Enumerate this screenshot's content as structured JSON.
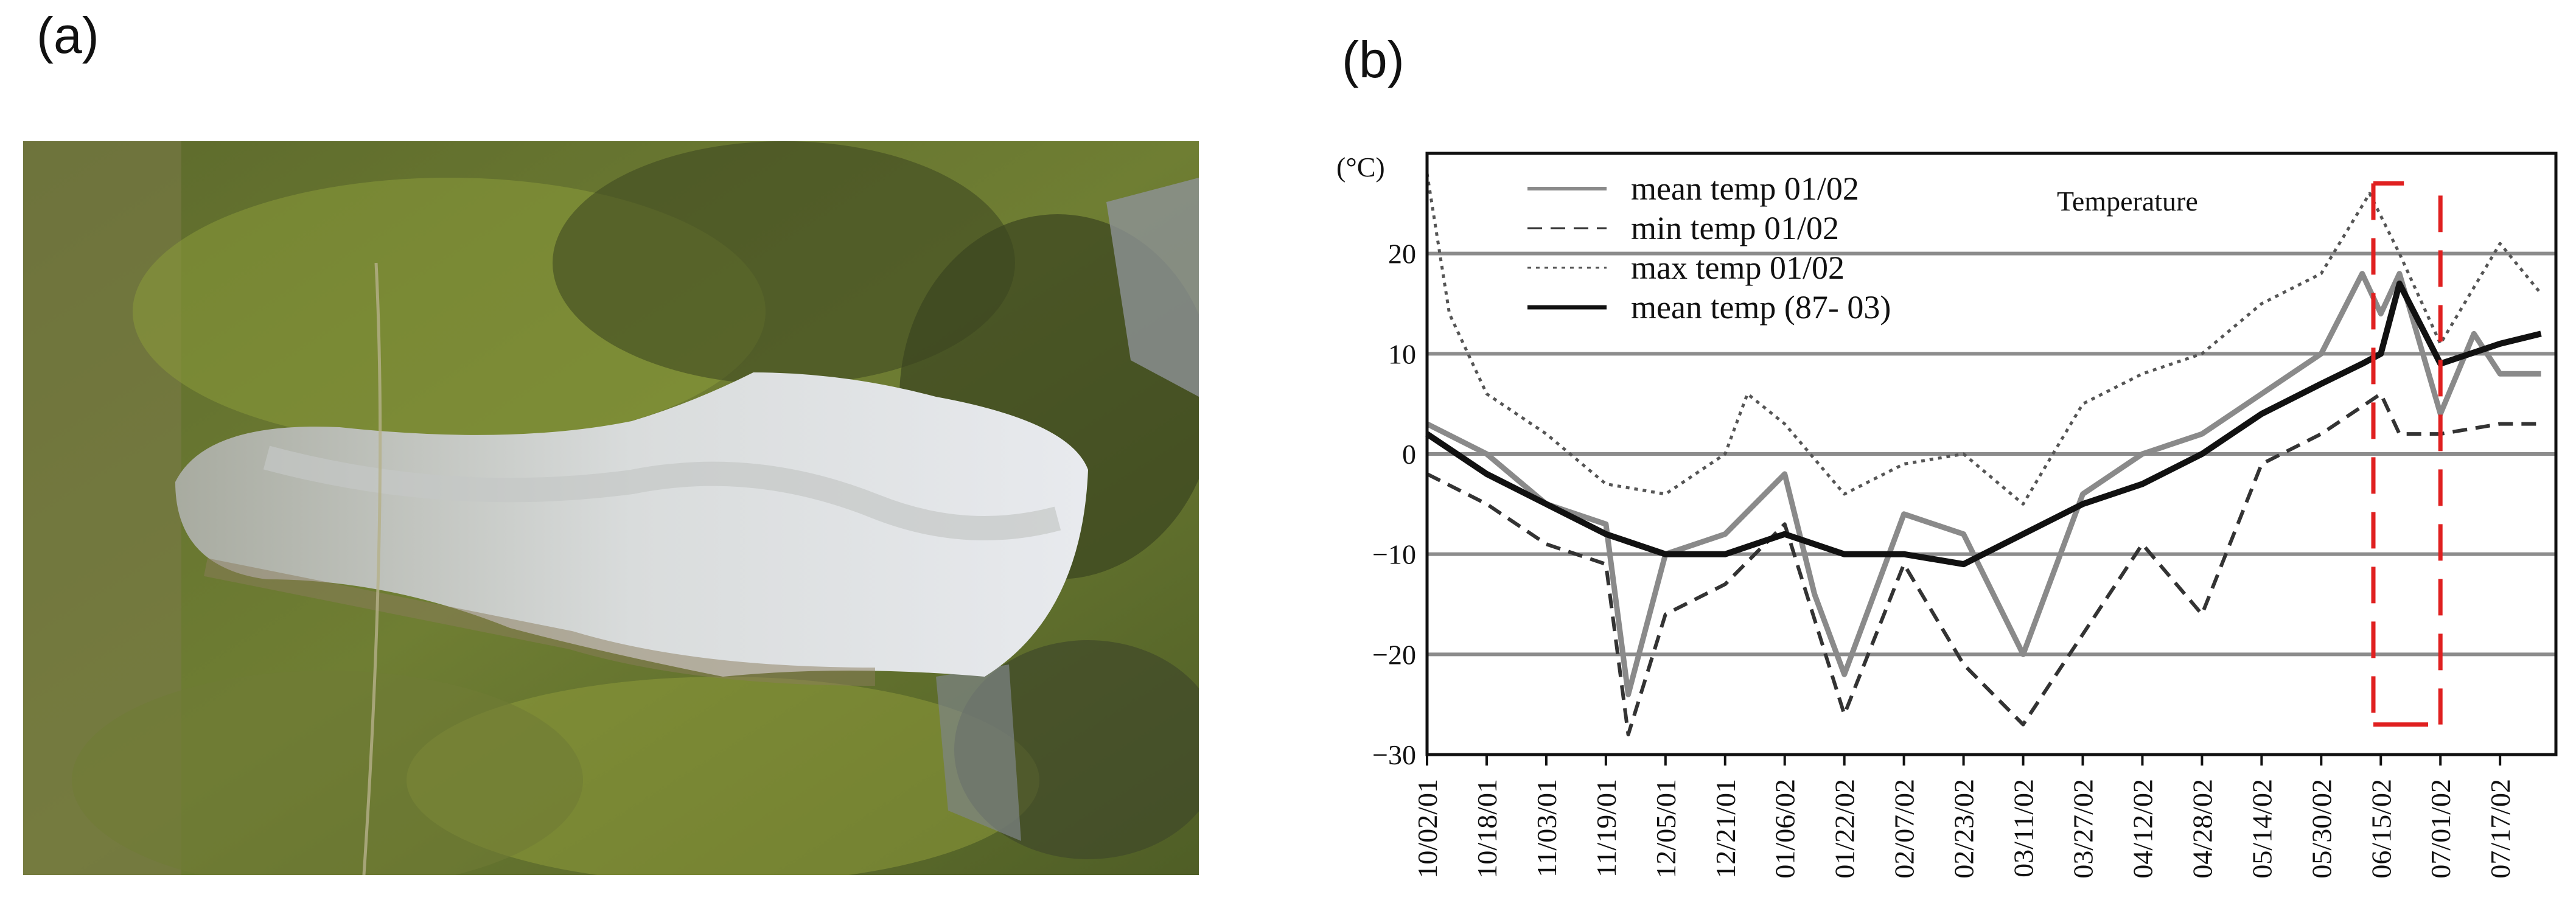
{
  "panels": {
    "a_label": "(a)",
    "b_label": "(b)"
  },
  "photo": {
    "icon": "aerial-landslide-photo"
  },
  "chart_data": {
    "type": "line",
    "ylabel": "(°C)",
    "annotation": "Temperature",
    "ylim": [
      -30,
      30
    ],
    "yticks": [
      -30,
      -20,
      -10,
      0,
      10,
      20
    ],
    "xlim": [
      "10/02/01",
      "08/01/02"
    ],
    "xticks": [
      "10/02/01",
      "10/18/01",
      "11/03/01",
      "11/19/01",
      "12/05/01",
      "12/21/01",
      "01/06/02",
      "01/22/02",
      "02/07/02",
      "02/23/02",
      "03/11/02",
      "03/27/02",
      "04/12/02",
      "04/28/02",
      "05/14/02",
      "05/30/02",
      "06/15/02",
      "07/01/02",
      "07/17/02"
    ],
    "grid": "horizontal",
    "highlight": {
      "from": "06/13/02",
      "to": "07/01/02",
      "ymin": -27,
      "ymax": 27,
      "color": "#e02020",
      "style": "dashed"
    },
    "legend": {
      "position": "top-left"
    },
    "series": [
      {
        "name": "mean temp 01/02",
        "style": "solid-gray",
        "color": "#8a8a8a",
        "x": [
          "10/02/01",
          "10/18/01",
          "11/03/01",
          "11/19/01",
          "11/25/01",
          "12/05/01",
          "12/21/01",
          "01/06/02",
          "01/14/02",
          "01/22/02",
          "02/07/02",
          "02/23/02",
          "03/11/02",
          "03/27/02",
          "04/12/02",
          "04/28/02",
          "05/14/02",
          "05/30/02",
          "06/10/02",
          "06/15/02",
          "06/20/02",
          "07/01/02",
          "07/10/02",
          "07/17/02",
          "07/28/02"
        ],
        "values": [
          3,
          0,
          -5,
          -7,
          -24,
          -10,
          -8,
          -2,
          -14,
          -22,
          -6,
          -8,
          -20,
          -4,
          0,
          2,
          6,
          10,
          18,
          14,
          18,
          4,
          12,
          8,
          8
        ]
      },
      {
        "name": "min temp 01/02",
        "style": "dashed",
        "color": "#333333",
        "x": [
          "10/02/01",
          "10/18/01",
          "11/03/01",
          "11/19/01",
          "11/25/01",
          "12/05/01",
          "12/21/01",
          "01/06/02",
          "01/22/02",
          "02/07/02",
          "02/23/02",
          "03/11/02",
          "03/27/02",
          "04/12/02",
          "04/28/02",
          "05/14/02",
          "05/30/02",
          "06/15/02",
          "06/20/02",
          "07/01/02",
          "07/17/02",
          "07/28/02"
        ],
        "values": [
          -2,
          -5,
          -9,
          -11,
          -28,
          -16,
          -13,
          -7,
          -26,
          -11,
          -21,
          -27,
          -18,
          -9,
          -16,
          -1,
          2,
          6,
          2,
          2,
          3,
          3
        ]
      },
      {
        "name": "max temp 01/02",
        "style": "dotted",
        "color": "#555555",
        "x": [
          "10/02/01",
          "10/08/01",
          "10/18/01",
          "11/03/01",
          "11/19/01",
          "12/05/01",
          "12/21/01",
          "12/27/01",
          "01/06/02",
          "01/22/02",
          "02/07/02",
          "02/23/02",
          "03/11/02",
          "03/27/02",
          "04/12/02",
          "04/28/02",
          "05/14/02",
          "05/30/02",
          "06/12/02",
          "06/20/02",
          "07/01/02",
          "07/17/02",
          "07/28/02"
        ],
        "values": [
          28,
          14,
          6,
          2,
          -3,
          -4,
          0,
          6,
          3,
          -4,
          -1,
          0,
          -5,
          5,
          8,
          10,
          15,
          18,
          26,
          20,
          11,
          21,
          16
        ]
      },
      {
        "name": "mean temp (87- 03)",
        "style": "solid-bold",
        "color": "#111111",
        "x": [
          "10/02/01",
          "10/18/01",
          "11/03/01",
          "11/19/01",
          "12/05/01",
          "12/21/01",
          "01/06/02",
          "01/22/02",
          "02/07/02",
          "02/23/02",
          "03/11/02",
          "03/27/02",
          "04/12/02",
          "04/28/02",
          "05/14/02",
          "05/30/02",
          "06/10/02",
          "06/15/02",
          "06/20/02",
          "07/01/02",
          "07/17/02",
          "07/28/02"
        ],
        "values": [
          2,
          -2,
          -5,
          -8,
          -10,
          -10,
          -8,
          -10,
          -10,
          -11,
          -8,
          -5,
          -3,
          0,
          4,
          7,
          9,
          10,
          17,
          9,
          11,
          12
        ]
      }
    ]
  }
}
